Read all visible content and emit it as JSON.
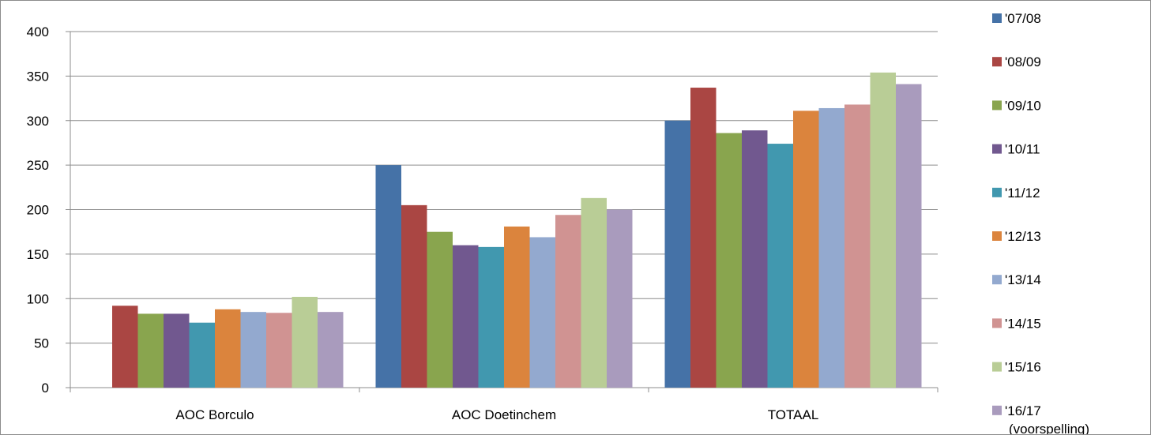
{
  "chart_data": {
    "type": "bar",
    "title": "",
    "xlabel": "",
    "ylabel": "",
    "ylim": [
      0,
      400
    ],
    "yticks": [
      0,
      50,
      100,
      150,
      200,
      250,
      300,
      350,
      400
    ],
    "grid": true,
    "legend_position": "right",
    "categories": [
      "AOC Borculo",
      "AOC Doetinchem",
      "TOTAAL"
    ],
    "series": [
      {
        "name": "'07/08",
        "color": "#4572A7",
        "values": [
          0,
          250,
          300
        ]
      },
      {
        "name": "'08/09",
        "color": "#AA4643",
        "values": [
          92,
          205,
          337
        ]
      },
      {
        "name": "'09/10",
        "color": "#89A54E",
        "values": [
          83,
          175,
          286
        ]
      },
      {
        "name": "'10/11",
        "color": "#71588F",
        "values": [
          83,
          160,
          289
        ]
      },
      {
        "name": "'11/12",
        "color": "#4198AF",
        "values": [
          73,
          158,
          274
        ]
      },
      {
        "name": "'12/13",
        "color": "#DB843D",
        "values": [
          88,
          181,
          311
        ]
      },
      {
        "name": "'13/14",
        "color": "#93A9CF",
        "values": [
          85,
          169,
          314
        ]
      },
      {
        "name": "'14/15",
        "color": "#D09392",
        "values": [
          84,
          194,
          318
        ]
      },
      {
        "name": "'15/16",
        "color": "#B9CD96",
        "values": [
          102,
          213,
          354
        ]
      },
      {
        "name": "'16/17 (voorspelling)",
        "color": "#A99BBD",
        "values": [
          85,
          200,
          341
        ]
      }
    ]
  }
}
